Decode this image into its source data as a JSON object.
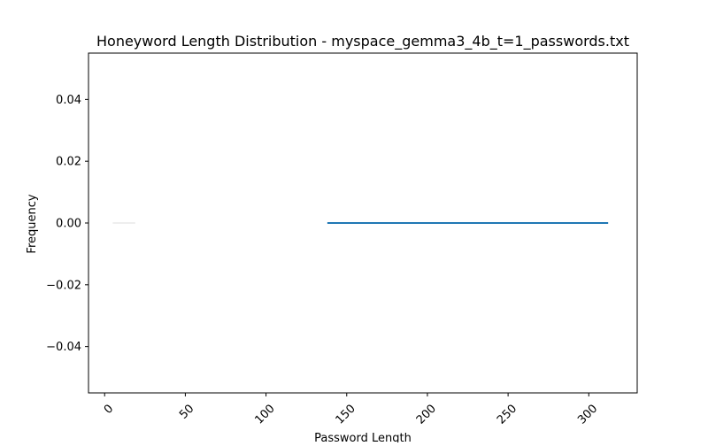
{
  "chart_data": {
    "type": "line",
    "title": "Honeyword Length Distribution - myspace_gemma3_4b_t=1_passwords.txt",
    "xlabel": "Password Length",
    "ylabel": "Frequency",
    "xlim": [
      -10,
      330
    ],
    "ylim": [
      -0.055,
      0.055
    ],
    "xticks": [
      0,
      50,
      100,
      150,
      200,
      250,
      300
    ],
    "yticks": [
      -0.04,
      -0.02,
      0.0,
      0.02,
      0.04
    ],
    "ytick_labels": [
      "−0.04",
      "−0.02",
      "0.00",
      "0.02",
      "0.04"
    ],
    "xtick_rotation": 45,
    "grid": false,
    "series": [
      {
        "color": "#eeeeee",
        "x": [
          5,
          19
        ],
        "y": [
          0,
          0
        ]
      },
      {
        "color": "#1f77b4",
        "x": [
          138,
          312
        ],
        "y": [
          0,
          0
        ]
      }
    ]
  }
}
